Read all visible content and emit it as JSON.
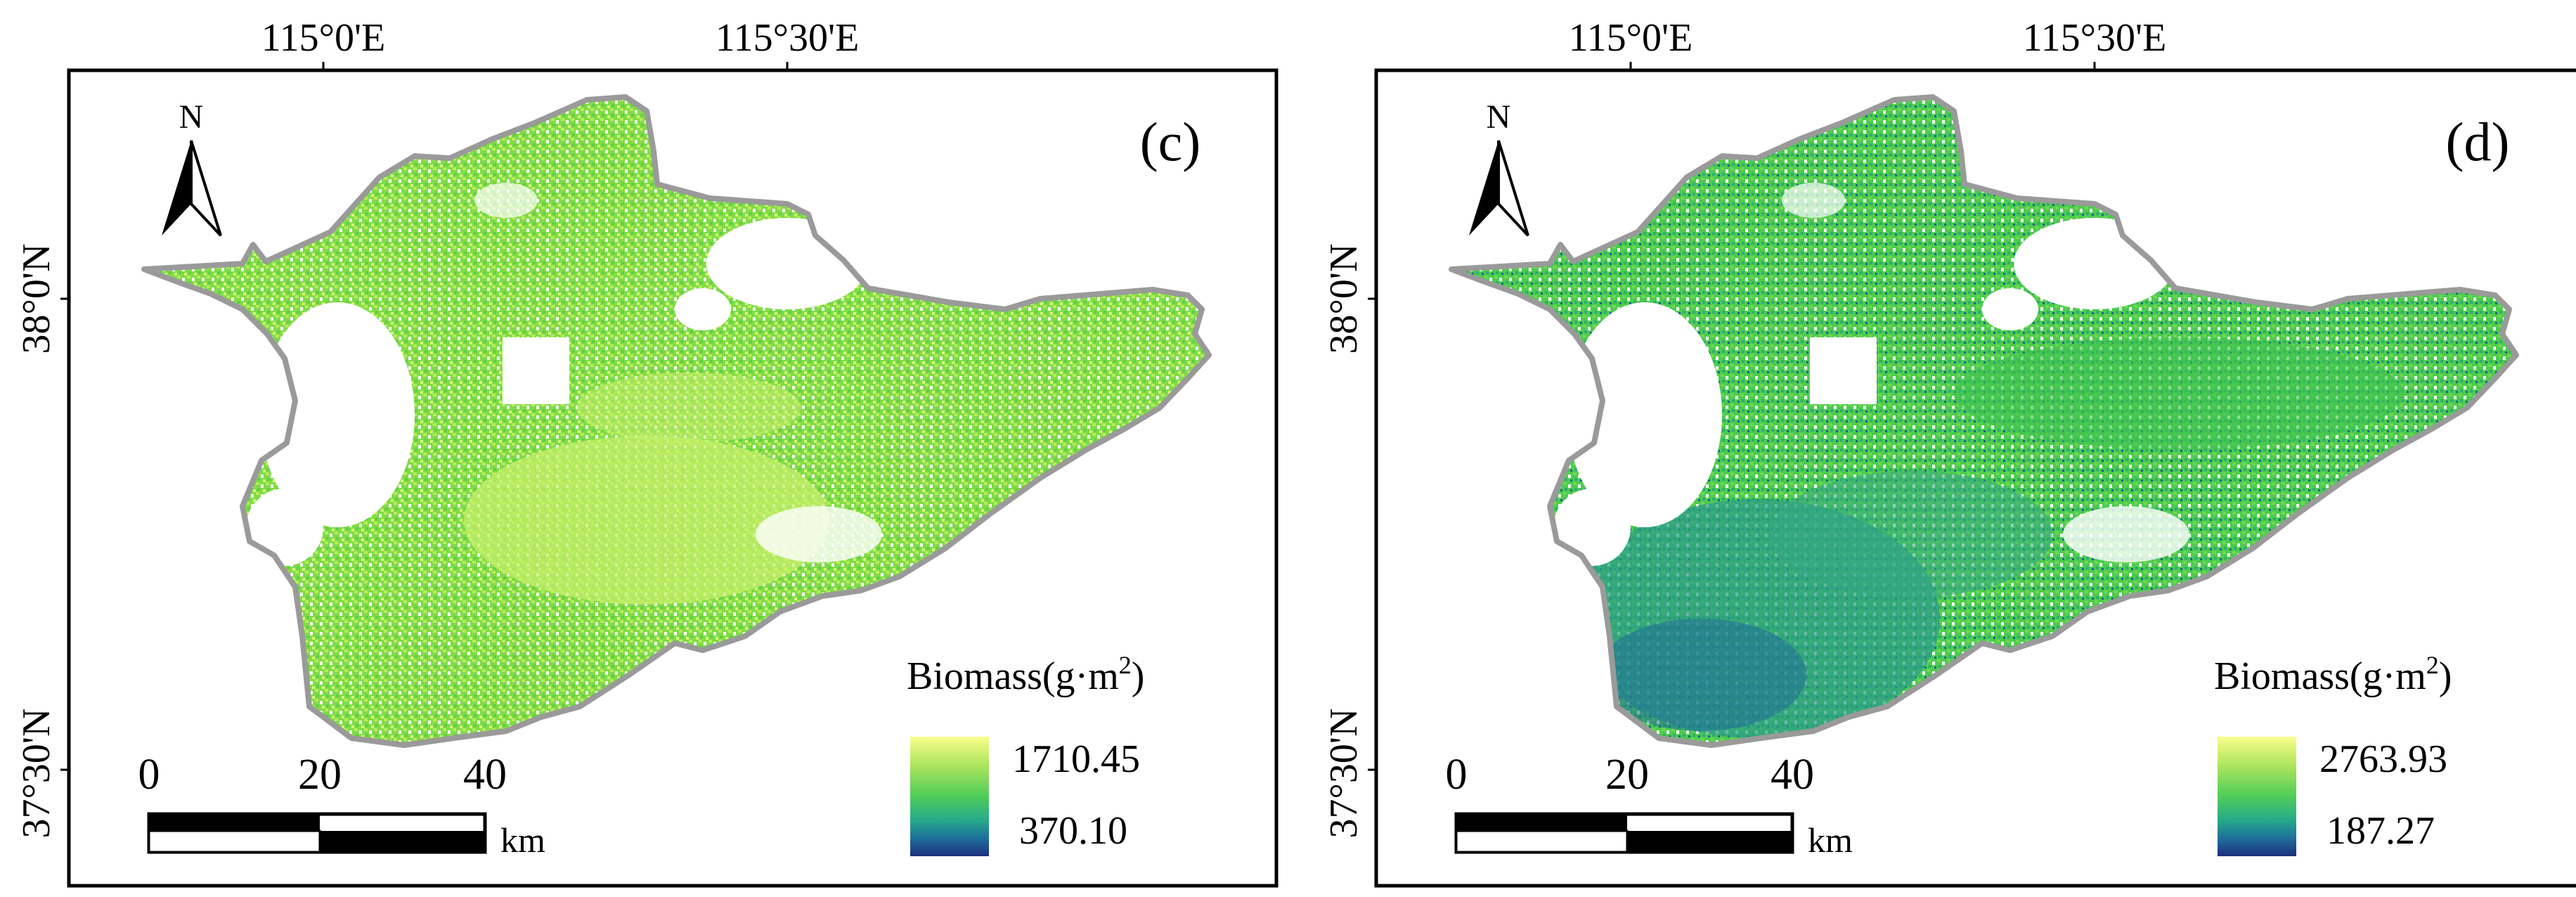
{
  "figure": {
    "panels": [
      {
        "label": "(c)",
        "lon_ticks": [
          "115°0'E",
          "115°30'E"
        ],
        "lat_ticks": [
          "38°0'N",
          "37°30'N"
        ],
        "north": "N",
        "scale": {
          "ticks": [
            "0",
            "20",
            "40"
          ],
          "unit": "km"
        },
        "legend": {
          "title": "Biomass(g·m",
          "title_sup": "2",
          "title_end": ")",
          "max": "1710.45",
          "min": "370.10"
        },
        "ramp_colors": [
          "#fbfd8a",
          "#a8e45c",
          "#4fcc5a",
          "#26a98a",
          "#1e6f9a",
          "#1d2f7e"
        ]
      },
      {
        "label": "(d)",
        "lon_ticks": [
          "115°0'E",
          "115°30'E"
        ],
        "lat_ticks": [
          "38°0'N",
          "37°30'N"
        ],
        "north": "N",
        "scale": {
          "ticks": [
            "0",
            "20",
            "40"
          ],
          "unit": "km"
        },
        "legend": {
          "title": "Biomass(g·m",
          "title_sup": "2",
          "title_end": ")",
          "max": "2763.93",
          "min": "187.27"
        },
        "ramp_colors": [
          "#fbfd8a",
          "#a8e45c",
          "#4fcc5a",
          "#26a98a",
          "#1e6f9a",
          "#1d2f7e"
        ]
      }
    ]
  }
}
